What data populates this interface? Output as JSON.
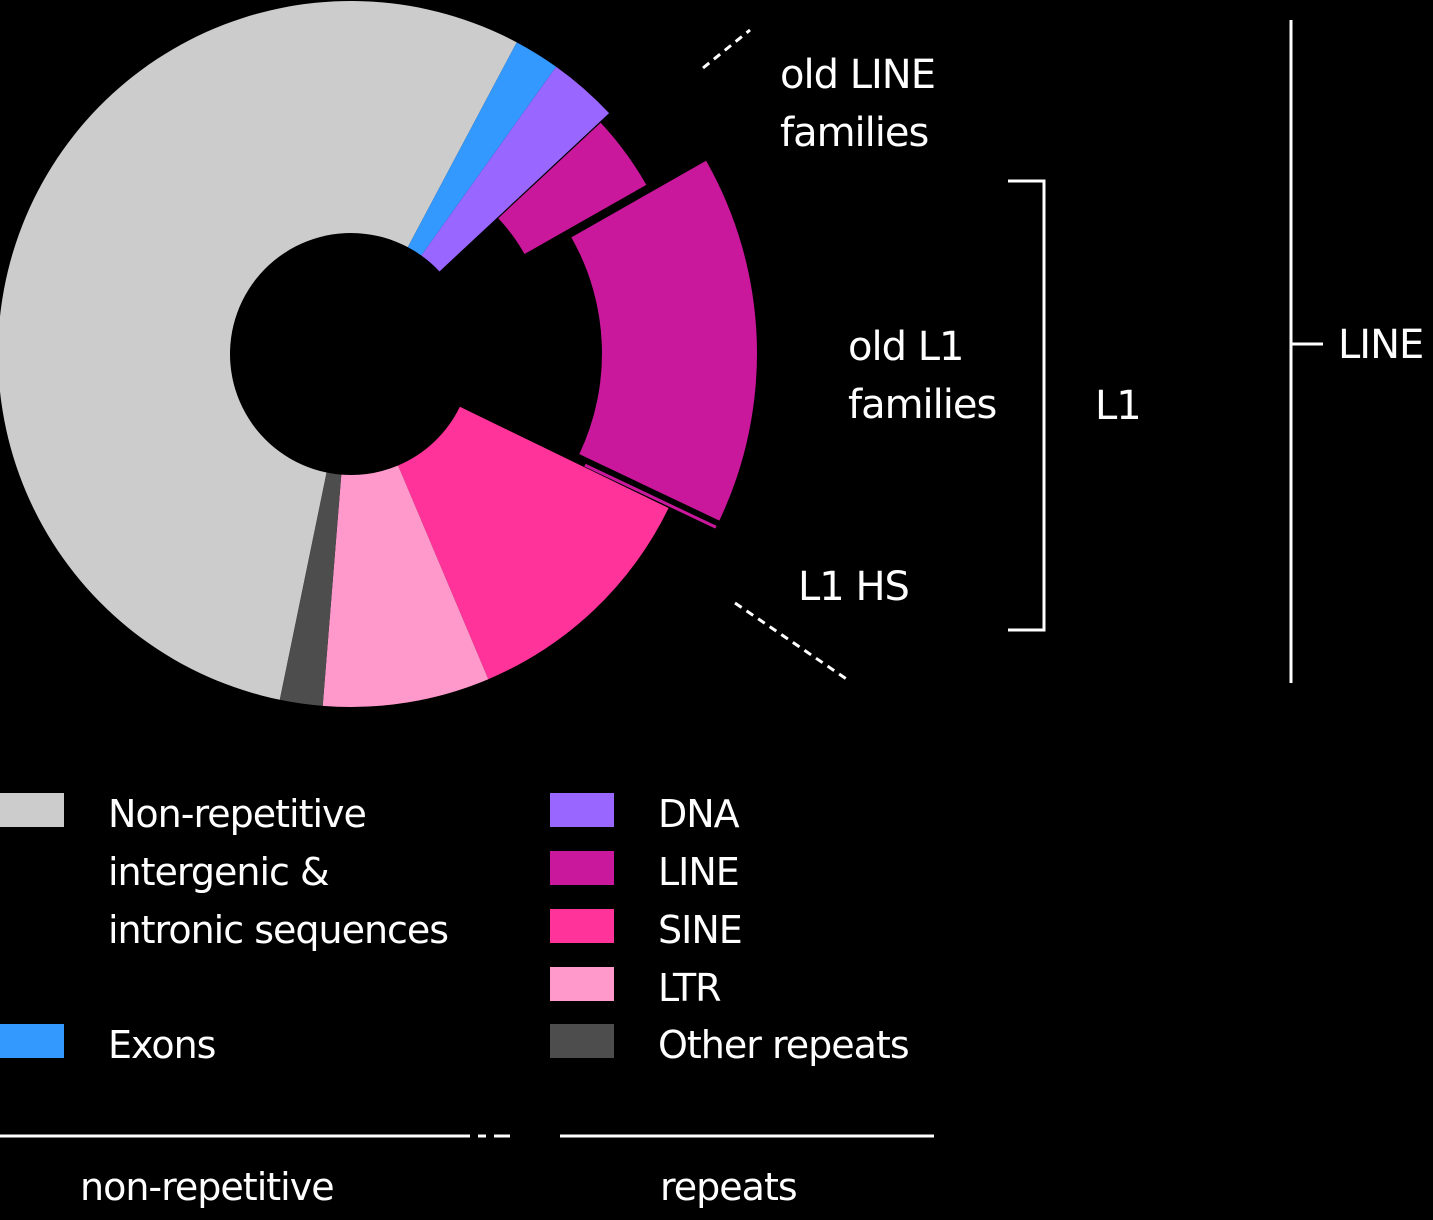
{
  "chart_data": {
    "type": "pie",
    "style": "donut with exploded LINE subdivisions",
    "slices": [
      {
        "label": "Non-repetitive intergenic & intronic sequences",
        "value": 60.0,
        "color": "#cccccc"
      },
      {
        "label": "Exons",
        "value": 2.3,
        "color": "#3399ff"
      },
      {
        "label": "DNA",
        "value": 3.5,
        "color": "#9966ff"
      },
      {
        "label": "old LINE families",
        "value": 4.1,
        "color": "#c9189b",
        "group": "LINE"
      },
      {
        "label": "old L1 families",
        "value": 16.8,
        "color": "#c9189b",
        "group": "LINE"
      },
      {
        "label": "L1 HS",
        "value": 0.15,
        "color": "#c9189b",
        "group": "LINE"
      },
      {
        "label": "SINE",
        "value": 12.6,
        "color": "#ff3399"
      },
      {
        "label": "LTR",
        "value": 8.4,
        "color": "#ff99cc"
      },
      {
        "label": "Other repeats",
        "value": 2.15,
        "color": "#4d4d4d"
      }
    ],
    "annotations": {
      "old_line": [
        "old LINE",
        "families"
      ],
      "old_l1": [
        "old L1",
        "families"
      ],
      "l1hs": "L1 HS",
      "l1_bracket": "L1",
      "line_bracket": "LINE"
    },
    "legend": {
      "left": [
        {
          "lines": [
            "Non-repetitive",
            "intergenic &",
            "intronic sequences"
          ],
          "color": "#cccccc"
        },
        {
          "lines": [
            "Exons"
          ],
          "color": "#3399ff"
        }
      ],
      "right": [
        {
          "lines": [
            "DNA"
          ],
          "color": "#9966ff"
        },
        {
          "lines": [
            "LINE"
          ],
          "color": "#c9189b"
        },
        {
          "lines": [
            "SINE"
          ],
          "color": "#ff3399"
        },
        {
          "lines": [
            "LTR"
          ],
          "color": "#ff99cc"
        },
        {
          "lines": [
            "Other repeats"
          ],
          "color": "#4d4d4d"
        }
      ]
    },
    "groups": {
      "non_repetitive": "non-repetitive",
      "repeats": "repeats"
    }
  }
}
